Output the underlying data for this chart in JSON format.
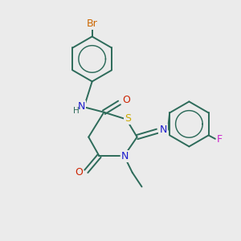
{
  "bg_color": "#ebebeb",
  "bond_color": "#2d6b5a",
  "atom_colors": {
    "Br": "#cc6600",
    "N": "#1a1acc",
    "O": "#cc2200",
    "S": "#ccaa00",
    "F": "#cc22cc",
    "C": "#2d6b5a",
    "H": "#2d6b5a"
  },
  "figsize": [
    3.0,
    3.0
  ],
  "dpi": 100
}
